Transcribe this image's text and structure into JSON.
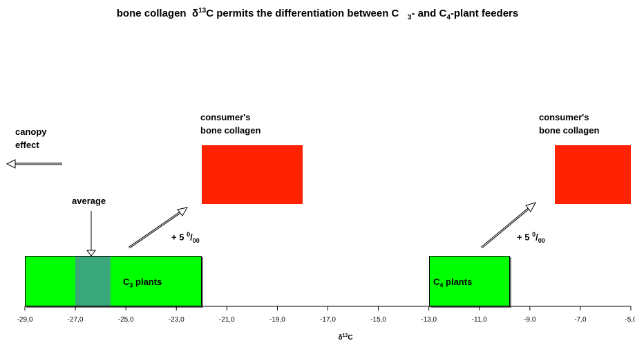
{
  "title": {
    "part1": "bone collagen",
    "delta": "δ",
    "sup13": "13",
    "part2": "C permits the differentiation between C",
    "sub3": "3",
    "part3": "- and C",
    "sub4": "4",
    "part4": "-plant feeders"
  },
  "labels": {
    "canopy_line1": "canopy",
    "canopy_line2": "effect",
    "average": "average",
    "consumer_left_line1": "consumer's",
    "consumer_left_line2": "bone collagen",
    "consumer_right_line1": "consumer's",
    "consumer_right_line2": "bone collagen",
    "shift_left_prefix": "+ 5",
    "shift_left_sup": "0",
    "shift_left_sub": "/00",
    "shift_right_prefix": "+ 5",
    "shift_right_sup": "0",
    "shift_right_sub": "/00",
    "c3_prefix": "C",
    "c3_sub": "3",
    "c3_suffix": " plants",
    "c4_prefix": "C",
    "c4_sub": "4",
    "c4_suffix": " plants"
  },
  "axis": {
    "label_delta": "δ",
    "label_sup": "13",
    "label_c": "C",
    "min": -29,
    "max": -5,
    "tick_labels": [
      "-29,0",
      "-27,0",
      "-25,0",
      "-23,0",
      "-21,0",
      "-19,0",
      "-17,0",
      "-15,0",
      "-13,0",
      "-11,0",
      "-9,0",
      "-7,0",
      "-5,0"
    ]
  },
  "ranges": {
    "c3_plants": [
      -29,
      -22
    ],
    "c3_average": [
      -27,
      -25.6
    ],
    "c4_plants": [
      -13,
      -9.8
    ],
    "consumer_c3": [
      -22,
      -18
    ],
    "consumer_c4": [
      -8,
      -5
    ]
  },
  "colors": {
    "plants": "#00ff00",
    "average": "#3aa87a",
    "consumer": "#ff2200"
  }
}
